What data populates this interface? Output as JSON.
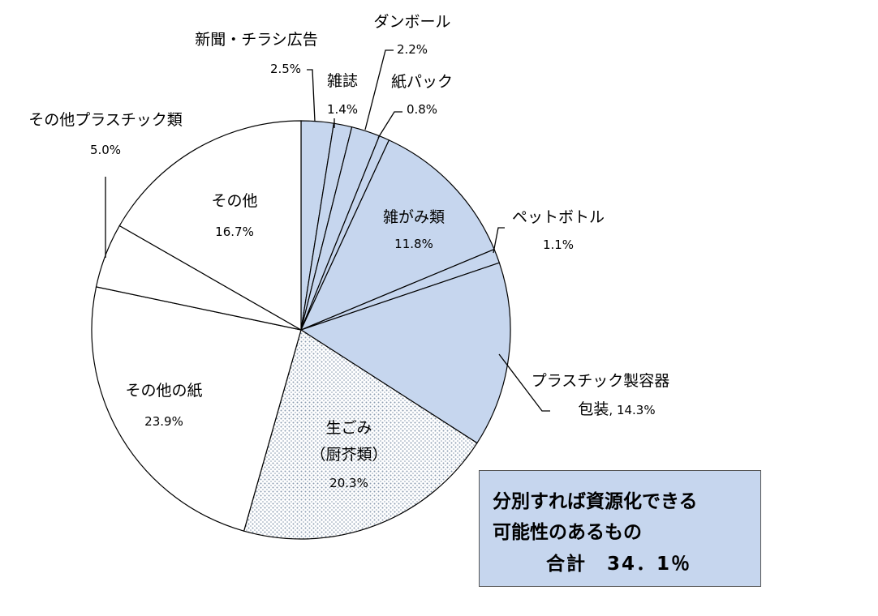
{
  "chart_data": {
    "type": "pie",
    "start_angle_deg": 0,
    "direction": "clockwise",
    "slices": [
      {
        "label": "新聞・チラシ広告",
        "value_label": "2.5%",
        "value": 2.5,
        "recyclable": true
      },
      {
        "label": "雑誌",
        "value_label": "1.4%",
        "value": 1.4,
        "recyclable": true
      },
      {
        "label": "ダンボール",
        "value_label": "2.2%",
        "value": 2.2,
        "recyclable": true
      },
      {
        "label": "紙パック",
        "value_label": "0.8%",
        "value": 0.8,
        "recyclable": true
      },
      {
        "label": "雑がみ類",
        "value_label": "11.8%",
        "value": 11.8,
        "recyclable": true
      },
      {
        "label": "ペットボトル",
        "value_label": "1.1%",
        "value": 1.1,
        "recyclable": true
      },
      {
        "label": "プラスチック製容器",
        "label_line2": "包装",
        "value_label": ", 14.3%",
        "value": 14.3,
        "recyclable": true
      },
      {
        "label": "生ごみ",
        "label_line2": "（厨芥類）",
        "value_label": "20.3%",
        "value": 20.3,
        "recyclable": false,
        "pattern": "dotted"
      },
      {
        "label": "その他の紙",
        "value_label": "23.9%",
        "value": 23.9,
        "recyclable": false
      },
      {
        "label": "その他プラスチック類",
        "value_label": "5.0%",
        "value": 5.0,
        "recyclable": false
      },
      {
        "label": "その他",
        "value_label": "16.7%",
        "value": 16.7,
        "recyclable": false
      }
    ],
    "colors": {
      "recyclable_fill": "#c6d6ee",
      "other_fill": "#ffffff",
      "dot_color": "#8a9cb0",
      "stroke": "#000000"
    },
    "summary": {
      "line1": "分別すれば資源化できる",
      "line2": "可能性のあるもの",
      "line3": "合計　34．1％"
    }
  }
}
